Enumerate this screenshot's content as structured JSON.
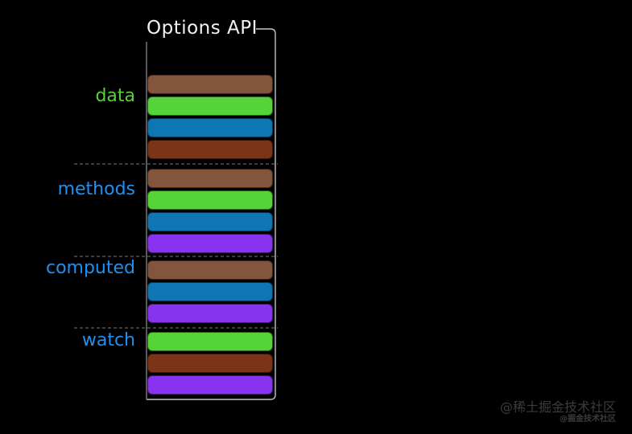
{
  "title": "Options API",
  "palette": {
    "brown": "#82553c",
    "green": "#55d337",
    "blue": "#0f76b4",
    "rust": "#7b3418",
    "purple": "#8833ee"
  },
  "frame_color": "#c4c4c4",
  "left_line_color": "#7f7f7f",
  "divider_color": "#7d7d7d",
  "sections": [
    {
      "label": "data",
      "label_color": "#55d337",
      "bars": [
        "brown",
        "green",
        "blue",
        "rust"
      ]
    },
    {
      "label": "methods",
      "label_color": "#2090f0",
      "bars": [
        "brown",
        "green",
        "blue",
        "purple"
      ]
    },
    {
      "label": "computed",
      "label_color": "#2090f0",
      "bars": [
        "brown",
        "blue",
        "purple"
      ]
    },
    {
      "label": "watch",
      "label_color": "#2090f0",
      "bars": [
        "green",
        "rust",
        "purple"
      ]
    }
  ],
  "watermark": {
    "primary": "@稀土掘金技术社区",
    "secondary": "@掘金技术社区"
  }
}
